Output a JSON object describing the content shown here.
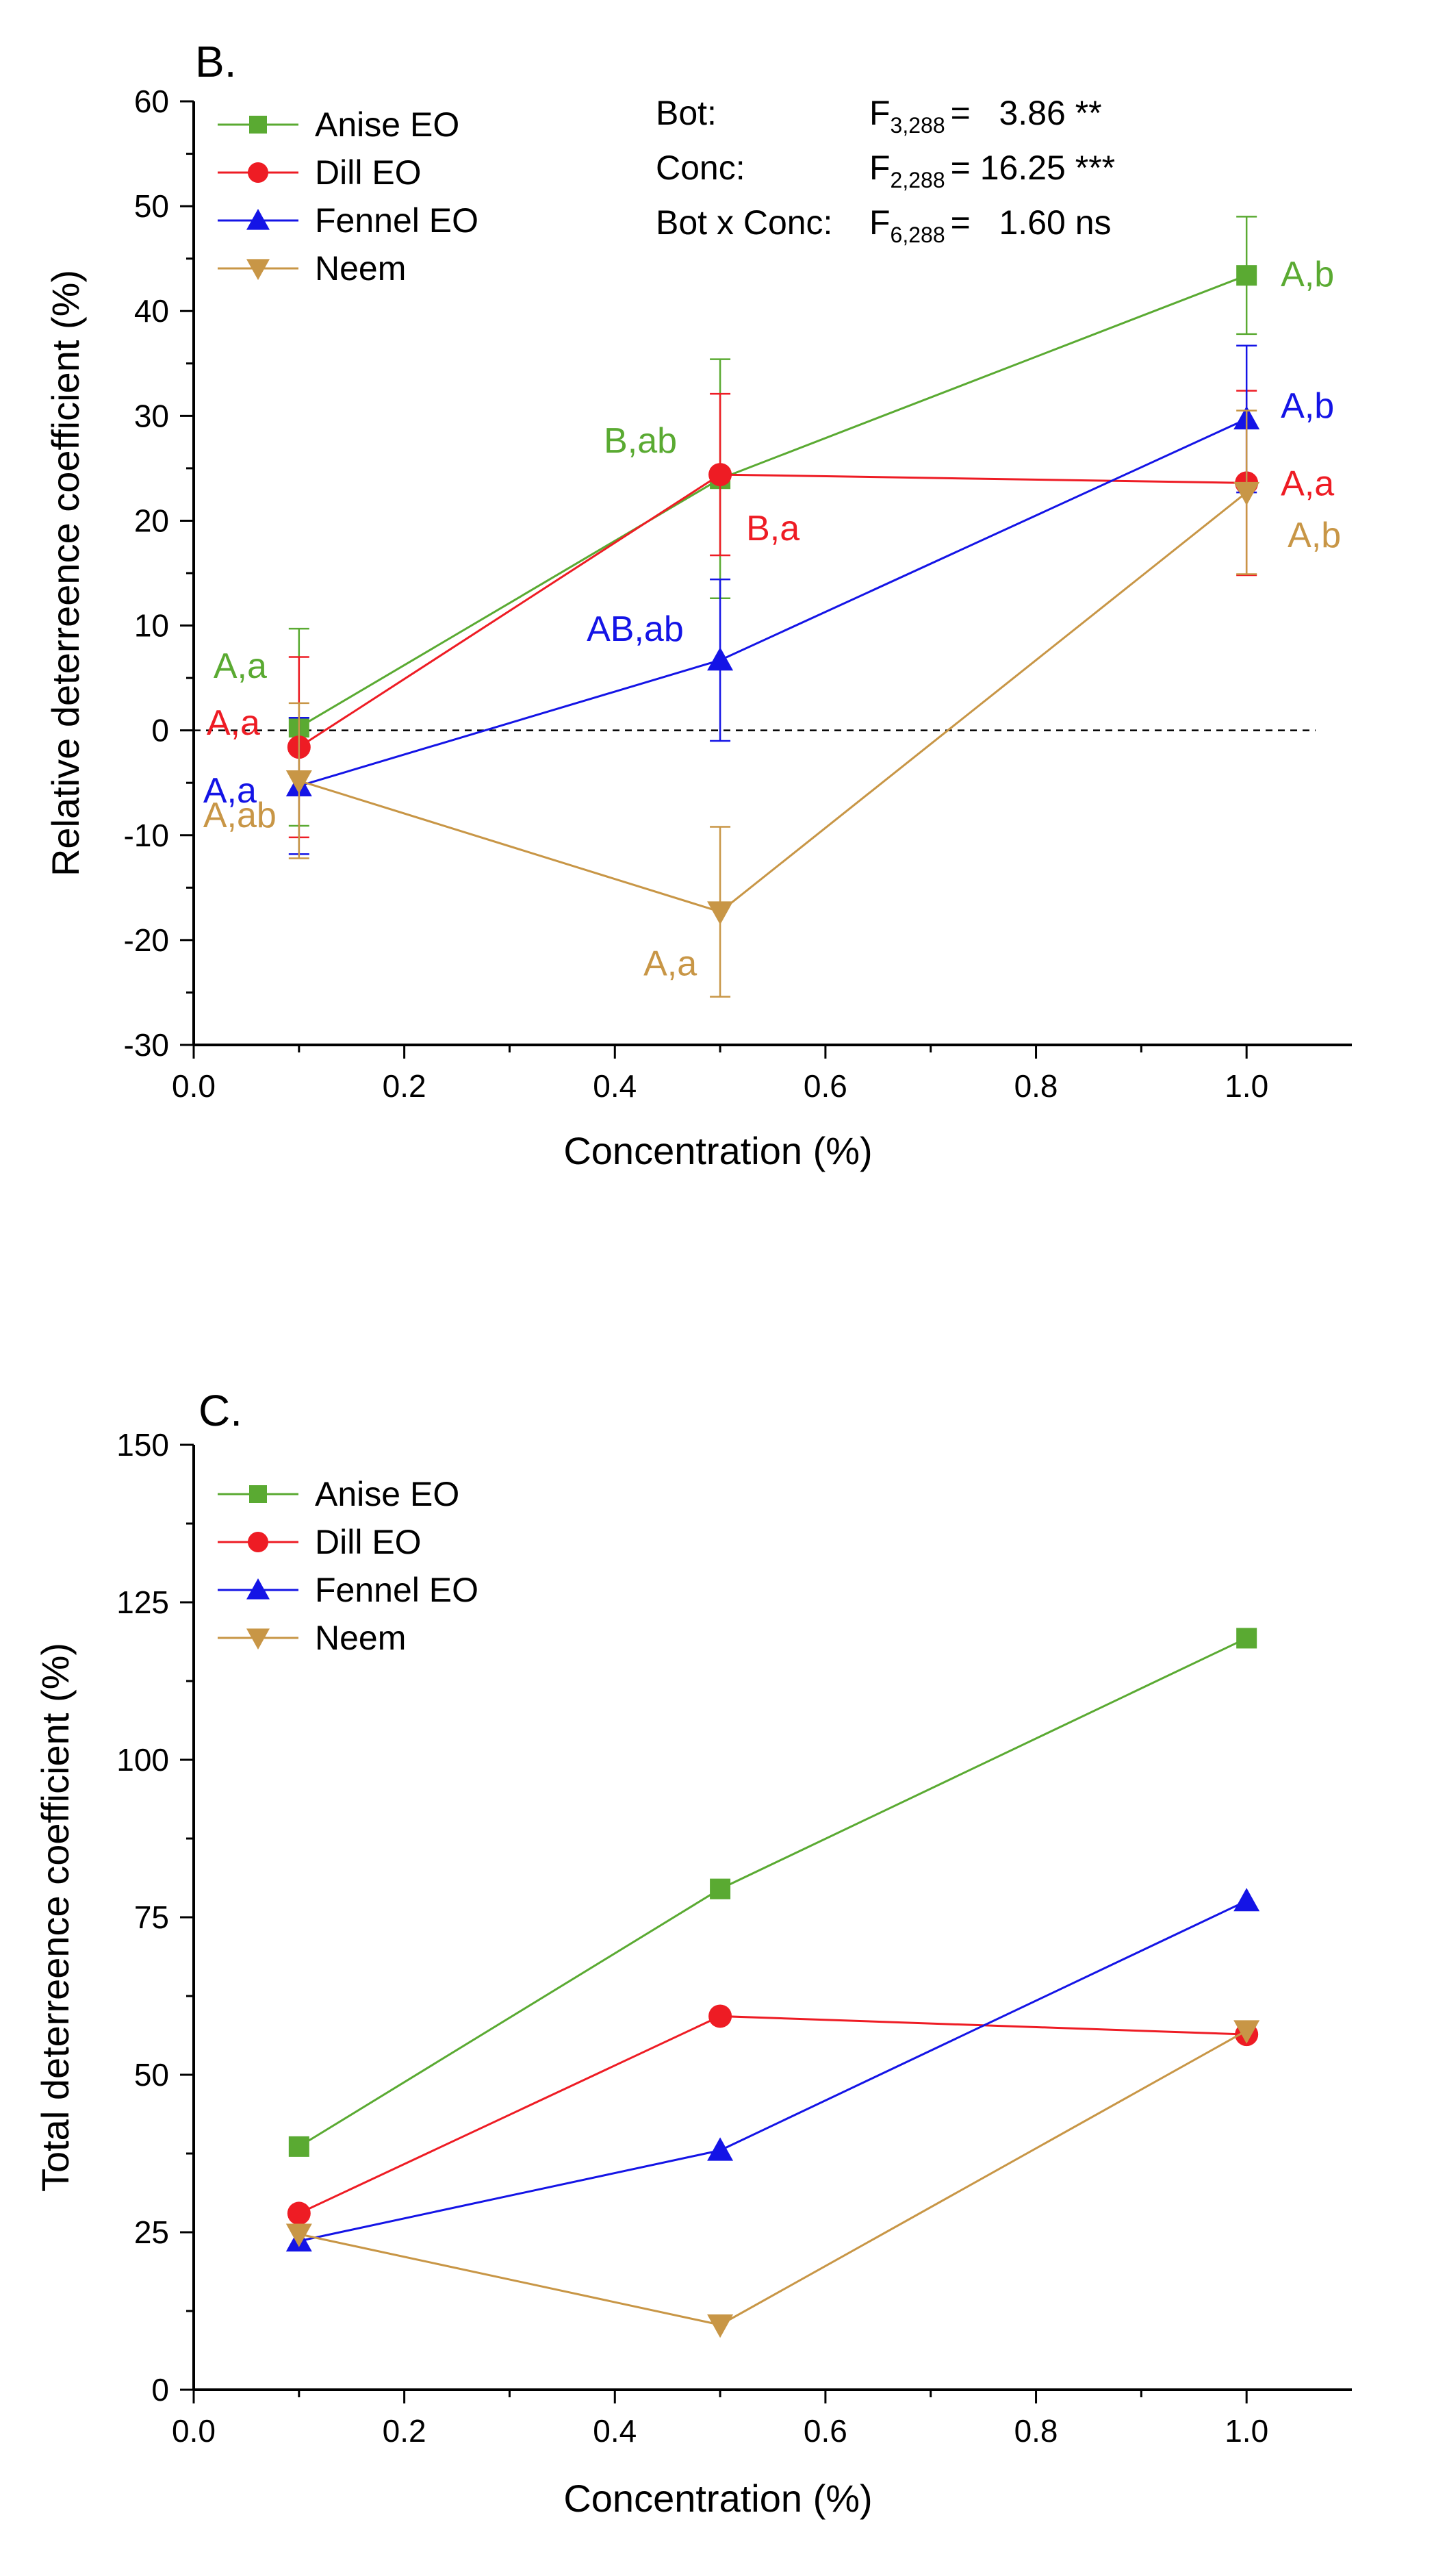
{
  "chart_data": [
    {
      "type": "line",
      "panel_label": "B.",
      "xlabel": "Concentration (%)",
      "ylabel": "Relative deterreence coefficient (%)",
      "xlim": [
        0.0,
        1.1
      ],
      "ylim": [
        -30,
        60
      ],
      "xticks": [
        0.0,
        0.2,
        0.4,
        0.6,
        0.8,
        1.0
      ],
      "xtick_labels": [
        "0.0",
        "0.2",
        "0.4",
        "0.6",
        "0.8",
        "1.0"
      ],
      "yticks": [
        -30,
        -20,
        -10,
        0,
        10,
        20,
        30,
        40,
        50,
        60
      ],
      "ytick_labels": [
        "-30",
        "-20",
        "-10",
        "0",
        "10",
        "20",
        "30",
        "40",
        "50",
        "60"
      ],
      "zero_line": true,
      "legend_position": "top-left",
      "series": [
        {
          "name": "Anise EO",
          "color": "#5aaa32",
          "marker": "square",
          "x": [
            0.1,
            0.5,
            1.0
          ],
          "y": [
            0.3,
            24.0,
            43.4
          ],
          "err": [
            9.4,
            11.4,
            5.6
          ],
          "labels": [
            "A,a",
            "B,ab",
            "A,b"
          ]
        },
        {
          "name": "Dill EO",
          "color": "#ee1c24",
          "marker": "circle",
          "x": [
            0.1,
            0.5,
            1.0
          ],
          "y": [
            -1.6,
            24.4,
            23.6
          ],
          "err": [
            8.6,
            7.7,
            8.8
          ],
          "labels": [
            "A,a",
            "B,a",
            "A,a"
          ]
        },
        {
          "name": "Fennel EO",
          "color": "#1414e6",
          "marker": "triangle-up",
          "x": [
            0.1,
            0.5,
            1.0
          ],
          "y": [
            -5.3,
            6.7,
            29.7
          ],
          "err": [
            6.5,
            7.7,
            7.0
          ],
          "labels": [
            "A,a",
            "AB,ab",
            "A,b"
          ]
        },
        {
          "name": "Neem",
          "color": "#c89646",
          "marker": "triangle-down",
          "x": [
            0.1,
            0.5,
            1.0
          ],
          "y": [
            -4.8,
            -17.3,
            22.7
          ],
          "err": [
            7.4,
            8.1,
            7.8
          ],
          "labels": [
            "A,ab",
            "A,a",
            "A,b"
          ]
        }
      ],
      "stats": [
        {
          "label": "Bot:",
          "f": "F",
          "df": "3,288",
          "value": "=   3.86 **"
        },
        {
          "label": "Conc:",
          "f": "F",
          "df": "2,288",
          "value": "= 16.25 ***"
        },
        {
          "label": "Bot x Conc:",
          "f": "F",
          "df": "6,288",
          "value": "=   1.60 ns"
        }
      ]
    },
    {
      "type": "line",
      "panel_label": "C.",
      "xlabel": "Concentration (%)",
      "ylabel": "Total deterreence coefficient (%)",
      "xlim": [
        0.0,
        1.1
      ],
      "ylim": [
        0,
        150
      ],
      "xticks": [
        0.0,
        0.2,
        0.4,
        0.6,
        0.8,
        1.0
      ],
      "xtick_labels": [
        "0.0",
        "0.2",
        "0.4",
        "0.6",
        "0.8",
        "1.0"
      ],
      "yticks": [
        0,
        25,
        50,
        75,
        100,
        125,
        150
      ],
      "ytick_labels": [
        "0",
        "25",
        "50",
        "75",
        "100",
        "125",
        "150"
      ],
      "legend_position": "top-left",
      "series": [
        {
          "name": "Anise EO",
          "color": "#5aaa32",
          "marker": "square",
          "x": [
            0.1,
            0.5,
            1.0
          ],
          "y": [
            38.6,
            79.5,
            119.3
          ]
        },
        {
          "name": "Dill EO",
          "color": "#ee1c24",
          "marker": "circle",
          "x": [
            0.1,
            0.5,
            1.0
          ],
          "y": [
            28.0,
            59.3,
            56.4
          ]
        },
        {
          "name": "Fennel EO",
          "color": "#1414e6",
          "marker": "triangle-up",
          "x": [
            0.1,
            0.5,
            1.0
          ],
          "y": [
            23.6,
            38.0,
            77.6
          ]
        },
        {
          "name": "Neem",
          "color": "#c89646",
          "marker": "triangle-down",
          "x": [
            0.1,
            0.5,
            1.0
          ],
          "y": [
            24.7,
            10.3,
            57.0
          ]
        }
      ]
    }
  ]
}
